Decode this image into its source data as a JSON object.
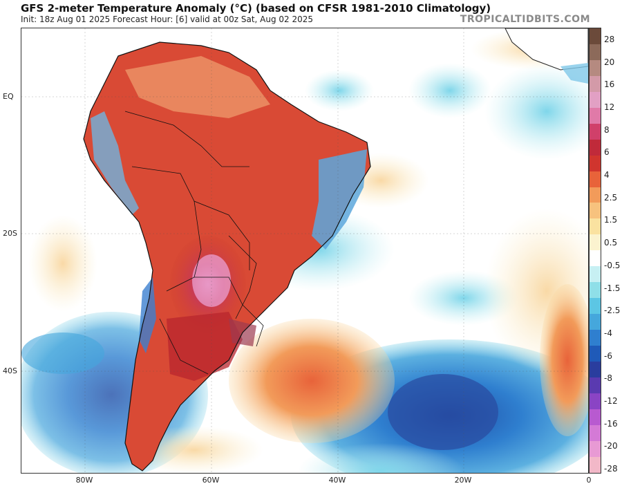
{
  "header": {
    "title": "GFS 2-meter Temperature Anomaly (°C) (based on CFSR 1981-2010 Climatology)",
    "subtitle": "Init: 18z Aug 01 2025   Forecast Hour: [6]   valid at 00z Sat, Aug 02 2025",
    "brand": "TROPICALTIDBITS.COM"
  },
  "axes": {
    "lat_labels": [
      "EQ",
      "20S",
      "40S"
    ],
    "lon_labels": [
      "80W",
      "60W",
      "40W",
      "20W",
      "0"
    ]
  },
  "colorbar": {
    "labels": [
      "28",
      "20",
      "16",
      "12",
      "8",
      "6",
      "4",
      "2.5",
      "1.5",
      "0.5",
      "-0.5",
      "-1.5",
      "-2.5",
      "-4",
      "-6",
      "-8",
      "-12",
      "-16",
      "-20",
      "-28"
    ],
    "colors": [
      "#6b4a3a",
      "#8c6a5a",
      "#b58a80",
      "#d39aa8",
      "#e2a0c4",
      "#e07aa8",
      "#d0406a",
      "#c02a3a",
      "#d0352e",
      "#e8633a",
      "#f29b5a",
      "#f7c27e",
      "#fae2a0",
      "#fbf3cf",
      "#ffffff",
      "#c7f0f3",
      "#8fdfe8",
      "#5cc6e4",
      "#45a7dc",
      "#2f7fcf",
      "#1f5ab8",
      "#2a3d9e",
      "#5a3ab0",
      "#8a44c4",
      "#b85ad0",
      "#d47ad6",
      "#e89ad4",
      "#f2b8c8"
    ]
  }
}
